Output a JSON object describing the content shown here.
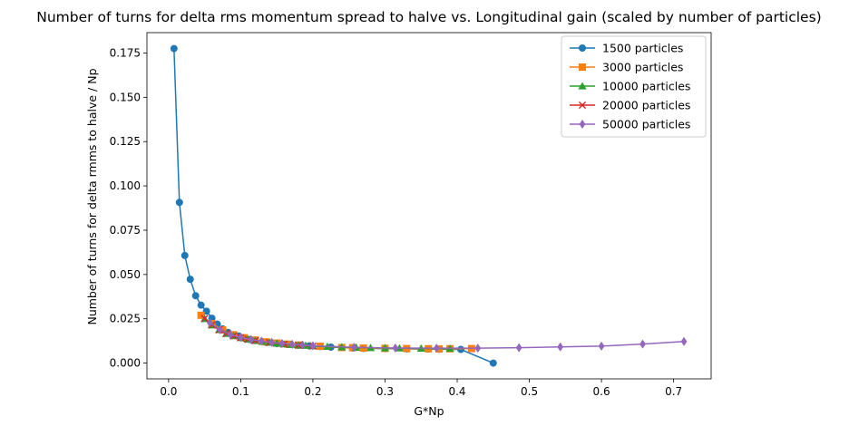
{
  "chart_data": {
    "type": "line",
    "title": "Number of turns for delta rms momentum spread to halve vs. Longitudinal gain (scaled by number of particles)",
    "xlabel": "G*Np",
    "ylabel": "Number of turns for delta rmms to halve / Np",
    "xlim": [
      -0.03,
      0.752
    ],
    "ylim": [
      -0.0089,
      0.1865
    ],
    "x_ticks": [
      0.0,
      0.1,
      0.2,
      0.3,
      0.4,
      0.5,
      0.6,
      0.7
    ],
    "x_tick_labels": [
      "0.0",
      "0.1",
      "0.2",
      "0.3",
      "0.4",
      "0.5",
      "0.6",
      "0.7"
    ],
    "y_ticks": [
      0.0,
      0.025,
      0.05,
      0.075,
      0.1,
      0.125,
      0.15,
      0.175
    ],
    "y_tick_labels": [
      "0.000",
      "0.025",
      "0.050",
      "0.075",
      "0.100",
      "0.125",
      "0.150",
      "0.175"
    ],
    "grid": false,
    "legend_position": "top-right",
    "series": [
      {
        "name": "1500 particles",
        "color": "#1f77b4",
        "marker": "circle",
        "x": [
          0.0075,
          0.015,
          0.0225,
          0.03,
          0.0375,
          0.045,
          0.0525,
          0.06,
          0.0675,
          0.075,
          0.0825,
          0.09,
          0.0975,
          0.105,
          0.1125,
          0.12,
          0.135,
          0.15,
          0.165,
          0.18,
          0.195,
          0.21,
          0.225,
          0.24,
          0.255,
          0.27,
          0.3,
          0.33,
          0.36,
          0.375,
          0.405,
          0.45
        ],
        "y": [
          0.1775,
          0.0907,
          0.0607,
          0.0473,
          0.038,
          0.0327,
          0.0293,
          0.0253,
          0.022,
          0.0193,
          0.0173,
          0.016,
          0.0153,
          0.014,
          0.0133,
          0.0127,
          0.0117,
          0.011,
          0.0105,
          0.01,
          0.0097,
          0.0093,
          0.009,
          0.0088,
          0.0085,
          0.0083,
          0.0082,
          0.008,
          0.0079,
          0.0078,
          0.0077,
          0.0
        ]
      },
      {
        "name": "3000 particles",
        "color": "#ff7f0e",
        "marker": "square",
        "x": [
          0.045,
          0.06,
          0.075,
          0.09,
          0.105,
          0.12,
          0.135,
          0.15,
          0.165,
          0.18,
          0.21,
          0.24,
          0.255,
          0.27,
          0.3,
          0.33,
          0.36,
          0.375,
          0.39,
          0.42
        ],
        "y": [
          0.027,
          0.0223,
          0.0187,
          0.016,
          0.0143,
          0.013,
          0.012,
          0.0113,
          0.0107,
          0.0102,
          0.0095,
          0.0088,
          0.0087,
          0.0085,
          0.0083,
          0.0082,
          0.0081,
          0.008,
          0.0081,
          0.0082
        ]
      },
      {
        "name": "10000 particles",
        "color": "#2ca02c",
        "marker": "triangle",
        "x": [
          0.05,
          0.06,
          0.07,
          0.08,
          0.09,
          0.1,
          0.11,
          0.12,
          0.13,
          0.14,
          0.15,
          0.16,
          0.17,
          0.18,
          0.19,
          0.2,
          0.22,
          0.24,
          0.26,
          0.28,
          0.3,
          0.32,
          0.35,
          0.39
        ],
        "y": [
          0.025,
          0.0214,
          0.0188,
          0.0166,
          0.0153,
          0.0143,
          0.0134,
          0.0127,
          0.0121,
          0.0116,
          0.0111,
          0.0107,
          0.0104,
          0.0101,
          0.0099,
          0.0096,
          0.0093,
          0.009,
          0.0088,
          0.0086,
          0.0085,
          0.0084,
          0.0083,
          0.0082
        ]
      },
      {
        "name": "20000 particles",
        "color": "#d62728",
        "marker": "x",
        "x": [
          0.05,
          0.06,
          0.07,
          0.08,
          0.09,
          0.1,
          0.11,
          0.12,
          0.14,
          0.16,
          0.18,
          0.2
        ],
        "y": [
          0.0252,
          0.0215,
          0.0188,
          0.0167,
          0.0153,
          0.0143,
          0.0134,
          0.0127,
          0.0116,
          0.0107,
          0.0101,
          0.0096
        ]
      },
      {
        "name": "50000 particles",
        "color": "#9467bd",
        "marker": "thin_diamond",
        "x": [
          0.0571,
          0.0714,
          0.0857,
          0.1,
          0.1143,
          0.1286,
          0.1429,
          0.1571,
          0.1714,
          0.1857,
          0.2,
          0.2571,
          0.3143,
          0.3714,
          0.4286,
          0.4857,
          0.5429,
          0.6,
          0.6571,
          0.7143
        ],
        "y": [
          0.0228,
          0.0188,
          0.016,
          0.0145,
          0.0133,
          0.0124,
          0.0117,
          0.0111,
          0.0106,
          0.0102,
          0.0098,
          0.0089,
          0.0085,
          0.0084,
          0.0084,
          0.0087,
          0.0091,
          0.0096,
          0.0107,
          0.0122
        ]
      }
    ]
  }
}
